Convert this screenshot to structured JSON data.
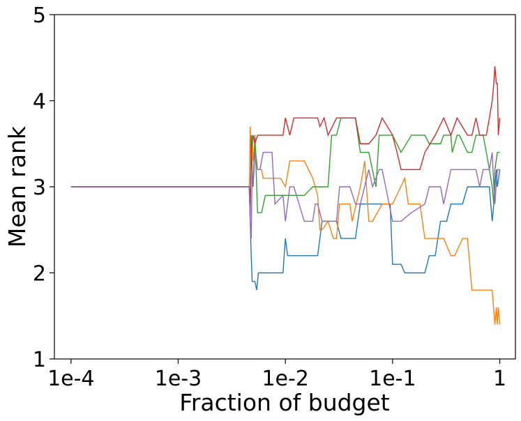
{
  "chart_data": {
    "type": "line",
    "title": "",
    "xlabel": "Fraction of budget",
    "ylabel": "Mean rank",
    "xscale": "log",
    "xlim": [
      7e-05,
      1.4
    ],
    "ylim": [
      1,
      5
    ],
    "x_ticks": [
      {
        "value": 0.0001,
        "label": "1e-4"
      },
      {
        "value": 0.001,
        "label": "1e-3"
      },
      {
        "value": 0.01,
        "label": "1e-2"
      },
      {
        "value": 0.1,
        "label": "1e-1"
      },
      {
        "value": 1,
        "label": "1"
      }
    ],
    "y_ticks": [
      {
        "value": 1,
        "label": "1"
      },
      {
        "value": 2,
        "label": "2"
      },
      {
        "value": 3,
        "label": "3"
      },
      {
        "value": 4,
        "label": "4"
      },
      {
        "value": 5,
        "label": "5"
      }
    ],
    "grid": false,
    "legend": "none",
    "series": [
      {
        "name": "series-blue",
        "color": "#1f77b4",
        "x": [
          0.0001,
          0.0046,
          0.0047,
          0.0048,
          0.0049,
          0.005,
          0.0052,
          0.0054,
          0.0056,
          0.0058,
          0.006,
          0.0095,
          0.01,
          0.0105,
          0.011,
          0.02,
          0.022,
          0.03,
          0.033,
          0.045,
          0.05,
          0.055,
          0.06,
          0.095,
          0.1,
          0.12,
          0.13,
          0.2,
          0.22,
          0.25,
          0.28,
          0.32,
          0.35,
          0.45,
          0.5,
          0.8,
          0.85,
          0.88,
          0.9,
          0.93,
          0.95,
          1.0
        ],
        "y": [
          3.0,
          3.0,
          2.6,
          2.2,
          1.9,
          1.9,
          1.9,
          1.8,
          2.0,
          2.0,
          2.0,
          2.0,
          2.4,
          2.2,
          2.2,
          2.2,
          2.6,
          2.6,
          2.4,
          2.4,
          2.8,
          2.8,
          2.8,
          2.8,
          2.1,
          2.1,
          2.0,
          2.0,
          2.2,
          2.2,
          2.6,
          2.6,
          2.8,
          2.8,
          3.0,
          3.0,
          2.6,
          2.8,
          3.0,
          3.2,
          3.0,
          3.2
        ]
      },
      {
        "name": "series-orange",
        "color": "#ff7f0e",
        "x": [
          0.0001,
          0.0046,
          0.0047,
          0.0048,
          0.0049,
          0.005,
          0.0052,
          0.0055,
          0.006,
          0.0062,
          0.0065,
          0.009,
          0.01,
          0.011,
          0.015,
          0.018,
          0.02,
          0.021,
          0.022,
          0.025,
          0.028,
          0.03,
          0.032,
          0.04,
          0.042,
          0.05,
          0.055,
          0.06,
          0.065,
          0.08,
          0.09,
          0.1,
          0.13,
          0.14,
          0.16,
          0.18,
          0.2,
          0.22,
          0.25,
          0.3,
          0.35,
          0.38,
          0.45,
          0.5,
          0.55,
          0.85,
          0.9,
          0.93,
          0.95,
          0.97,
          1.0
        ],
        "y": [
          3.0,
          3.0,
          3.7,
          3.2,
          3.6,
          3.3,
          3.5,
          3.2,
          3.2,
          3.1,
          3.1,
          3.1,
          3.0,
          3.3,
          3.3,
          3.1,
          2.9,
          2.5,
          2.5,
          2.6,
          2.4,
          2.4,
          2.8,
          2.8,
          2.6,
          3.0,
          3.3,
          2.6,
          2.6,
          2.8,
          2.8,
          2.8,
          3.1,
          2.8,
          2.8,
          2.8,
          2.4,
          2.4,
          2.4,
          2.4,
          2.2,
          2.2,
          2.4,
          2.4,
          1.8,
          1.8,
          1.4,
          1.6,
          1.4,
          1.6,
          1.4
        ]
      },
      {
        "name": "series-green",
        "color": "#2ca02c",
        "x": [
          0.0001,
          0.0046,
          0.0047,
          0.0048,
          0.0049,
          0.005,
          0.0052,
          0.0055,
          0.006,
          0.0065,
          0.0075,
          0.015,
          0.018,
          0.025,
          0.027,
          0.03,
          0.033,
          0.045,
          0.05,
          0.06,
          0.07,
          0.075,
          0.09,
          0.1,
          0.12,
          0.15,
          0.2,
          0.22,
          0.28,
          0.3,
          0.35,
          0.36,
          0.4,
          0.42,
          0.5,
          0.55,
          0.6,
          0.7,
          0.75,
          0.8,
          0.85,
          0.88,
          0.9,
          0.95,
          1.0
        ],
        "y": [
          3.0,
          3.0,
          2.6,
          3.6,
          3.2,
          3.0,
          3.6,
          2.7,
          2.7,
          2.9,
          2.9,
          2.9,
          3.0,
          3.0,
          3.6,
          3.6,
          3.8,
          3.8,
          3.4,
          3.4,
          3.0,
          3.6,
          3.6,
          3.6,
          3.4,
          3.6,
          3.6,
          3.5,
          3.5,
          3.6,
          3.6,
          3.4,
          3.6,
          3.6,
          3.4,
          3.4,
          3.6,
          3.6,
          3.4,
          3.2,
          3.0,
          2.8,
          3.2,
          3.4,
          3.4
        ]
      },
      {
        "name": "series-red",
        "color": "#d62728",
        "x": [
          0.0001,
          0.0046,
          0.0047,
          0.0048,
          0.0049,
          0.005,
          0.0052,
          0.0055,
          0.006,
          0.0095,
          0.01,
          0.011,
          0.012,
          0.02,
          0.021,
          0.023,
          0.025,
          0.03,
          0.032,
          0.045,
          0.05,
          0.06,
          0.07,
          0.08,
          0.1,
          0.11,
          0.12,
          0.18,
          0.2,
          0.25,
          0.3,
          0.35,
          0.4,
          0.5,
          0.55,
          0.6,
          0.65,
          0.75,
          0.8,
          0.85,
          0.88,
          0.9,
          0.93,
          0.95,
          0.97,
          1.0
        ],
        "y": [
          3.0,
          3.0,
          2.8,
          3.4,
          3.5,
          3.6,
          3.5,
          3.6,
          3.6,
          3.6,
          3.8,
          3.6,
          3.8,
          3.8,
          3.7,
          3.8,
          3.6,
          3.8,
          3.8,
          3.8,
          3.5,
          3.5,
          3.6,
          3.8,
          3.6,
          3.4,
          3.2,
          3.2,
          3.4,
          3.6,
          3.8,
          3.6,
          3.8,
          3.6,
          3.6,
          3.8,
          3.6,
          3.6,
          3.8,
          4.0,
          4.2,
          4.4,
          4.2,
          4.2,
          3.6,
          3.8
        ]
      },
      {
        "name": "series-purple",
        "color": "#9467bd",
        "x": [
          0.0001,
          0.0046,
          0.0047,
          0.0048,
          0.0049,
          0.005,
          0.0052,
          0.0055,
          0.0058,
          0.0062,
          0.0075,
          0.008,
          0.0095,
          0.01,
          0.011,
          0.012,
          0.015,
          0.018,
          0.019,
          0.02,
          0.022,
          0.03,
          0.032,
          0.04,
          0.045,
          0.05,
          0.06,
          0.065,
          0.075,
          0.08,
          0.1,
          0.12,
          0.15,
          0.2,
          0.22,
          0.28,
          0.3,
          0.35,
          0.4,
          0.6,
          0.65,
          0.7,
          0.8,
          0.85,
          0.88,
          0.9,
          0.95,
          1.0
        ],
        "y": [
          3.0,
          3.0,
          2.6,
          2.4,
          3.2,
          3.0,
          3.4,
          3.2,
          3.2,
          3.4,
          3.4,
          2.8,
          2.9,
          2.6,
          3.0,
          3.0,
          2.6,
          2.6,
          2.8,
          2.8,
          2.6,
          2.6,
          3.0,
          3.0,
          2.8,
          2.8,
          3.2,
          3.0,
          3.2,
          3.2,
          2.6,
          2.6,
          2.7,
          2.8,
          3.0,
          3.0,
          2.8,
          3.2,
          3.2,
          3.2,
          3.0,
          3.2,
          3.2,
          3.4,
          3.0,
          2.8,
          3.2,
          3.2
        ]
      }
    ]
  }
}
